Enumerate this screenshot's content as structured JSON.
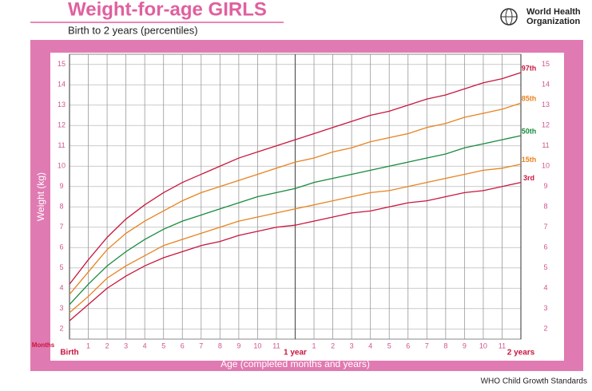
{
  "header": {
    "org": [
      "World Health",
      "Organization"
    ]
  },
  "footer": "WHO Child Growth Standards",
  "chart_data": {
    "type": "line",
    "title": "Weight-for-age GIRLS",
    "subtitle": "Birth to 2 years (percentiles)",
    "y_label": "Weight (kg)",
    "x_label": "Age (completed months and years)",
    "x_unit_label": "Months",
    "x": [
      0,
      1,
      2,
      3,
      4,
      5,
      6,
      7,
      8,
      9,
      10,
      11,
      12,
      13,
      14,
      15,
      16,
      17,
      18,
      19,
      20,
      21,
      22,
      23,
      24
    ],
    "xlim": [
      0,
      24
    ],
    "xticks": [
      {
        "value": 0,
        "label": "Birth"
      },
      1,
      2,
      3,
      4,
      5,
      6,
      7,
      8,
      9,
      10,
      11,
      {
        "value": 12,
        "label": "1 year"
      },
      {
        "value": 13,
        "label": "1"
      },
      {
        "value": 14,
        "label": "2"
      },
      {
        "value": 15,
        "label": "3"
      },
      {
        "value": 16,
        "label": "4"
      },
      {
        "value": 17,
        "label": "5"
      },
      {
        "value": 18,
        "label": "6"
      },
      {
        "value": 19,
        "label": "7"
      },
      {
        "value": 20,
        "label": "8"
      },
      {
        "value": 21,
        "label": "9"
      },
      {
        "value": 22,
        "label": "10"
      },
      {
        "value": 23,
        "label": "11"
      },
      {
        "value": 24,
        "label": "2 years"
      }
    ],
    "ylim": [
      1.5,
      15.5
    ],
    "yticks": [
      2,
      3,
      4,
      5,
      6,
      7,
      8,
      9,
      10,
      11,
      12,
      13,
      14,
      15
    ],
    "grid": true,
    "series": [
      {
        "name": "97th",
        "color": "#c8163e",
        "values": [
          4.2,
          5.4,
          6.5,
          7.4,
          8.1,
          8.7,
          9.2,
          9.6,
          10.0,
          10.4,
          10.7,
          11.0,
          11.3,
          11.6,
          11.9,
          12.2,
          12.5,
          12.7,
          13.0,
          13.3,
          13.5,
          13.8,
          14.1,
          14.3,
          14.6
        ]
      },
      {
        "name": "85th",
        "color": "#e8821e",
        "values": [
          3.7,
          4.8,
          5.9,
          6.7,
          7.3,
          7.8,
          8.3,
          8.7,
          9.0,
          9.3,
          9.6,
          9.9,
          10.2,
          10.4,
          10.7,
          10.9,
          11.2,
          11.4,
          11.6,
          11.9,
          12.1,
          12.4,
          12.6,
          12.8,
          13.1
        ]
      },
      {
        "name": "50th",
        "color": "#178a3c",
        "values": [
          3.2,
          4.2,
          5.1,
          5.8,
          6.4,
          6.9,
          7.3,
          7.6,
          7.9,
          8.2,
          8.5,
          8.7,
          8.9,
          9.2,
          9.4,
          9.6,
          9.8,
          10.0,
          10.2,
          10.4,
          10.6,
          10.9,
          11.1,
          11.3,
          11.5
        ]
      },
      {
        "name": "15th",
        "color": "#e8821e",
        "values": [
          2.8,
          3.6,
          4.5,
          5.1,
          5.6,
          6.1,
          6.4,
          6.7,
          7.0,
          7.3,
          7.5,
          7.7,
          7.9,
          8.1,
          8.3,
          8.5,
          8.7,
          8.8,
          9.0,
          9.2,
          9.4,
          9.6,
          9.8,
          9.9,
          10.1
        ]
      },
      {
        "name": "3rd",
        "color": "#c8163e",
        "values": [
          2.4,
          3.2,
          4.0,
          4.6,
          5.1,
          5.5,
          5.8,
          6.1,
          6.3,
          6.6,
          6.8,
          7.0,
          7.1,
          7.3,
          7.5,
          7.7,
          7.8,
          8.0,
          8.2,
          8.3,
          8.5,
          8.7,
          8.8,
          9.0,
          9.2
        ]
      }
    ]
  }
}
